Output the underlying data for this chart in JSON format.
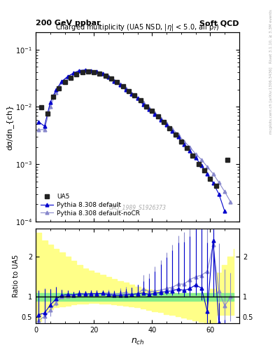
{
  "title_left": "200 GeV ppbar",
  "title_right": "Soft QCD",
  "plot_title": "Charged multiplicity (UA5 NSD, |h| < 5.0, all p_{T})",
  "xlabel": "n_{ch}",
  "ylabel_main": "dσ/dn_{ch}",
  "ylabel_ratio": "Ratio to UA5",
  "watermark": "UA5_1989_S1926373",
  "right_label_top": "Rivet 3.1.10, ≥ 3.3M events",
  "right_label_bot": "mcplots.cern.ch [arXiv:1306.3436]",
  "ua5_x": [
    2,
    4,
    6,
    8,
    10,
    12,
    14,
    16,
    18,
    20,
    22,
    24,
    26,
    28,
    30,
    32,
    34,
    36,
    38,
    40,
    42,
    44,
    46,
    48,
    50,
    52,
    54,
    56,
    58,
    60,
    62,
    66
  ],
  "ua5_y": [
    0.0098,
    0.0077,
    0.015,
    0.021,
    0.027,
    0.032,
    0.037,
    0.04,
    0.041,
    0.04,
    0.038,
    0.035,
    0.031,
    0.027,
    0.023,
    0.019,
    0.016,
    0.013,
    0.01,
    0.0085,
    0.0068,
    0.0054,
    0.0042,
    0.0033,
    0.0025,
    0.0019,
    0.0014,
    0.001,
    0.00078,
    0.00055,
    0.00042,
    0.0012
  ],
  "pd_x": [
    1,
    3,
    5,
    7,
    9,
    11,
    13,
    15,
    17,
    19,
    21,
    23,
    25,
    27,
    29,
    31,
    33,
    35,
    37,
    39,
    41,
    43,
    45,
    47,
    49,
    51,
    53,
    55,
    57,
    59,
    61,
    63,
    65
  ],
  "pd_y": [
    0.0055,
    0.0046,
    0.012,
    0.02,
    0.028,
    0.034,
    0.039,
    0.043,
    0.044,
    0.043,
    0.041,
    0.038,
    0.033,
    0.028,
    0.024,
    0.02,
    0.017,
    0.014,
    0.011,
    0.009,
    0.0074,
    0.006,
    0.0048,
    0.0038,
    0.003,
    0.0022,
    0.0017,
    0.0013,
    0.00095,
    0.00068,
    0.00047,
    0.0003,
    0.00015
  ],
  "pn_x": [
    1,
    3,
    5,
    7,
    9,
    11,
    13,
    15,
    17,
    19,
    21,
    23,
    25,
    27,
    29,
    31,
    33,
    35,
    37,
    39,
    41,
    43,
    45,
    47,
    49,
    51,
    53,
    55,
    57,
    59,
    61,
    63,
    65,
    67
  ],
  "pn_y": [
    0.004,
    0.004,
    0.01,
    0.018,
    0.027,
    0.033,
    0.039,
    0.043,
    0.044,
    0.043,
    0.041,
    0.038,
    0.034,
    0.029,
    0.025,
    0.021,
    0.017,
    0.014,
    0.012,
    0.0096,
    0.0078,
    0.0063,
    0.0051,
    0.0041,
    0.0033,
    0.0025,
    0.002,
    0.0015,
    0.0012,
    0.0009,
    0.00068,
    0.00048,
    0.00033,
    0.00022
  ],
  "ua5_color": "#222222",
  "pd_color": "#0000cc",
  "pn_color": "#8888cc",
  "yb_x": [
    0,
    2,
    4,
    6,
    8,
    10,
    12,
    14,
    16,
    18,
    20,
    22,
    24,
    26,
    28,
    30,
    32,
    34,
    36,
    38,
    40,
    42,
    44,
    46,
    48,
    50,
    52,
    54,
    56,
    58,
    60,
    62,
    64,
    66,
    68
  ],
  "yb_low": [
    0.4,
    0.65,
    0.7,
    0.74,
    0.77,
    0.79,
    0.81,
    0.83,
    0.84,
    0.85,
    0.85,
    0.84,
    0.83,
    0.82,
    0.8,
    0.78,
    0.76,
    0.74,
    0.71,
    0.68,
    0.65,
    0.62,
    0.58,
    0.55,
    0.52,
    0.48,
    0.45,
    0.42,
    0.38,
    0.34,
    0.3,
    0.55,
    0.55,
    0.55,
    0.55
  ],
  "yb_high": [
    2.6,
    2.4,
    2.3,
    2.2,
    2.1,
    2.0,
    1.9,
    1.8,
    1.7,
    1.65,
    1.6,
    1.55,
    1.5,
    1.45,
    1.4,
    1.35,
    1.3,
    1.25,
    1.2,
    1.18,
    1.15,
    1.12,
    1.1,
    1.08,
    1.06,
    1.04,
    1.02,
    1.02,
    1.05,
    1.1,
    1.2,
    1.6,
    1.8,
    2.0,
    2.2
  ],
  "gb_x": [
    0,
    2,
    4,
    6,
    8,
    10,
    12,
    14,
    16,
    18,
    20,
    22,
    24,
    26,
    28,
    30,
    32,
    34,
    36,
    38,
    40,
    42,
    44,
    46,
    48,
    50,
    52,
    54,
    56,
    58,
    60,
    62,
    64,
    66,
    68
  ],
  "gb_low": [
    0.9,
    0.9,
    0.9,
    0.9,
    0.9,
    0.9,
    0.9,
    0.9,
    0.9,
    0.9,
    0.9,
    0.9,
    0.9,
    0.9,
    0.9,
    0.9,
    0.9,
    0.9,
    0.9,
    0.9,
    0.9,
    0.9,
    0.9,
    0.9,
    0.9,
    0.9,
    0.9,
    0.9,
    0.9,
    0.9,
    0.9,
    0.9,
    0.9,
    0.9,
    0.9
  ],
  "gb_high": [
    1.1,
    1.1,
    1.1,
    1.1,
    1.1,
    1.1,
    1.1,
    1.1,
    1.1,
    1.1,
    1.1,
    1.1,
    1.1,
    1.1,
    1.1,
    1.1,
    1.1,
    1.1,
    1.1,
    1.1,
    1.1,
    1.1,
    1.1,
    1.1,
    1.1,
    1.1,
    1.1,
    1.1,
    1.1,
    1.1,
    1.1,
    1.1,
    1.1,
    1.1,
    1.1
  ],
  "rd_x": [
    1,
    3,
    5,
    7,
    9,
    11,
    13,
    15,
    17,
    19,
    21,
    23,
    25,
    27,
    29,
    31,
    33,
    35,
    37,
    39,
    41,
    43,
    45,
    47,
    49,
    51,
    53,
    55,
    57,
    59,
    61,
    63,
    65
  ],
  "rd_y": [
    0.56,
    0.6,
    0.8,
    0.95,
    1.04,
    1.06,
    1.05,
    1.08,
    1.07,
    1.08,
    1.08,
    1.09,
    1.06,
    1.04,
    1.04,
    1.05,
    1.06,
    1.08,
    1.1,
    1.06,
    1.09,
    1.11,
    1.14,
    1.15,
    1.2,
    1.16,
    1.21,
    1.3,
    1.22,
    0.65,
    2.4,
    0.36,
    0.14
  ],
  "rd_yerr_lo": [
    0.2,
    0.1,
    0.05,
    0.03,
    0.02,
    0.02,
    0.02,
    0.02,
    0.02,
    0.02,
    0.02,
    0.02,
    0.02,
    0.02,
    0.02,
    0.02,
    0.02,
    0.02,
    0.02,
    0.05,
    0.05,
    0.07,
    0.08,
    0.1,
    0.12,
    0.15,
    0.18,
    0.25,
    0.3,
    0.65,
    1.4,
    0.36,
    0.14
  ],
  "rd_yerr_hi": [
    0.6,
    0.6,
    0.4,
    0.3,
    0.15,
    0.1,
    0.08,
    0.08,
    0.08,
    0.08,
    0.08,
    0.08,
    0.08,
    0.1,
    0.12,
    0.15,
    0.18,
    0.22,
    0.3,
    0.4,
    0.55,
    0.7,
    0.85,
    1.0,
    1.15,
    1.2,
    1.3,
    1.5,
    1.6,
    1.7,
    0.3,
    0.5,
    0.3
  ],
  "rn_x": [
    1,
    3,
    5,
    7,
    9,
    11,
    13,
    15,
    17,
    19,
    21,
    23,
    25,
    27,
    29,
    31,
    33,
    35,
    37,
    39,
    41,
    43,
    45,
    47,
    49,
    51,
    53,
    55,
    57,
    59,
    61,
    63,
    65,
    67
  ],
  "rn_y": [
    0.41,
    0.52,
    0.67,
    0.86,
    1.0,
    1.03,
    1.05,
    1.08,
    1.07,
    1.08,
    1.08,
    1.09,
    1.1,
    1.07,
    1.09,
    1.11,
    1.06,
    1.08,
    1.2,
    1.13,
    1.15,
    1.17,
    1.21,
    1.24,
    1.32,
    1.32,
    1.43,
    1.5,
    1.54,
    1.64,
    2.3,
    1.14,
    0.78,
    1.0
  ],
  "rn_yerr_lo": [
    0.41,
    0.3,
    0.15,
    0.08,
    0.03,
    0.02,
    0.02,
    0.02,
    0.02,
    0.02,
    0.02,
    0.02,
    0.02,
    0.02,
    0.02,
    0.02,
    0.02,
    0.02,
    0.03,
    0.05,
    0.06,
    0.08,
    0.1,
    0.12,
    0.15,
    0.2,
    0.25,
    0.35,
    0.45,
    0.6,
    1.3,
    0.5,
    0.4,
    0.6
  ],
  "rn_yerr_hi": [
    0.7,
    0.7,
    0.5,
    0.3,
    0.15,
    0.1,
    0.08,
    0.08,
    0.08,
    0.08,
    0.08,
    0.08,
    0.08,
    0.1,
    0.12,
    0.15,
    0.18,
    0.22,
    0.35,
    0.45,
    0.6,
    0.75,
    0.9,
    1.05,
    1.2,
    1.3,
    1.4,
    1.6,
    1.7,
    1.8,
    0.3,
    1.2,
    0.9,
    0.6
  ],
  "ylim_main": [
    0.0001,
    0.2
  ],
  "ylim_ratio": [
    0.35,
    2.7
  ],
  "xlim": [
    0,
    70
  ],
  "ratio_yticks": [
    0.5,
    1.0,
    2.0
  ],
  "ratio_yticklabels": [
    "0.5",
    "1",
    "2"
  ]
}
